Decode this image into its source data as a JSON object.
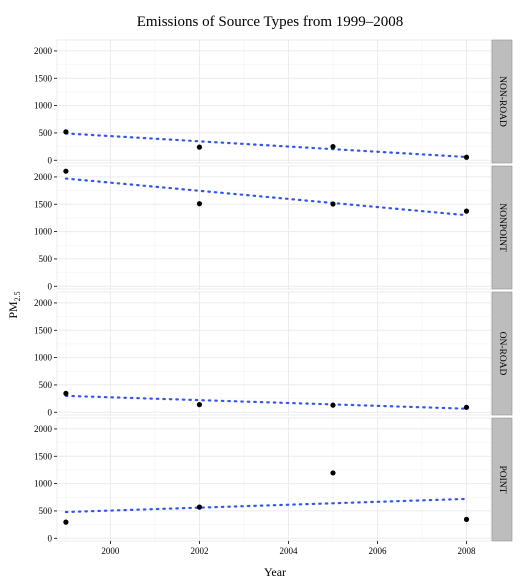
{
  "chart_data": {
    "type": "scatter",
    "title": "Emissions of Source Types from 1999–2008",
    "xlabel": "Year",
    "ylabel_main": "PM",
    "ylabel_sub": "2.5",
    "xlim": [
      1998.8,
      2008.55
    ],
    "ylim": [
      -50,
      2200
    ],
    "x_ticks": [
      2000,
      2002,
      2004,
      2006,
      2008
    ],
    "y_ticks": [
      0,
      500,
      1000,
      1500,
      2000
    ],
    "grid": true,
    "point_color": "#000000",
    "trend_color": "#3355ee",
    "panel_bg": "#ffffff",
    "grid_color": "#ebebeb",
    "strip_bg": "#bdbdbd",
    "panels": [
      {
        "label": "NON-ROAD",
        "x": [
          1999,
          2002,
          2005,
          2008
        ],
        "values": [
          520,
          240,
          250,
          55
        ],
        "trend": [
          [
            1999,
            490
          ],
          [
            2008,
            60
          ]
        ]
      },
      {
        "label": "NONPOINT",
        "x": [
          1999,
          2002,
          2005,
          2008
        ],
        "values": [
          2105,
          1510,
          1505,
          1375
        ],
        "trend": [
          [
            1999,
            1970
          ],
          [
            2008,
            1300
          ]
        ]
      },
      {
        "label": "ON-ROAD",
        "x": [
          1999,
          2002,
          2005,
          2008
        ],
        "values": [
          345,
          140,
          130,
          90
        ],
        "trend": [
          [
            1999,
            300
          ],
          [
            2008,
            65
          ]
        ]
      },
      {
        "label": "POINT",
        "x": [
          1999,
          2002,
          2005,
          2008
        ],
        "values": [
          295,
          570,
          1195,
          345
        ],
        "trend": [
          [
            1999,
            480
          ],
          [
            2008,
            720
          ]
        ]
      }
    ]
  }
}
